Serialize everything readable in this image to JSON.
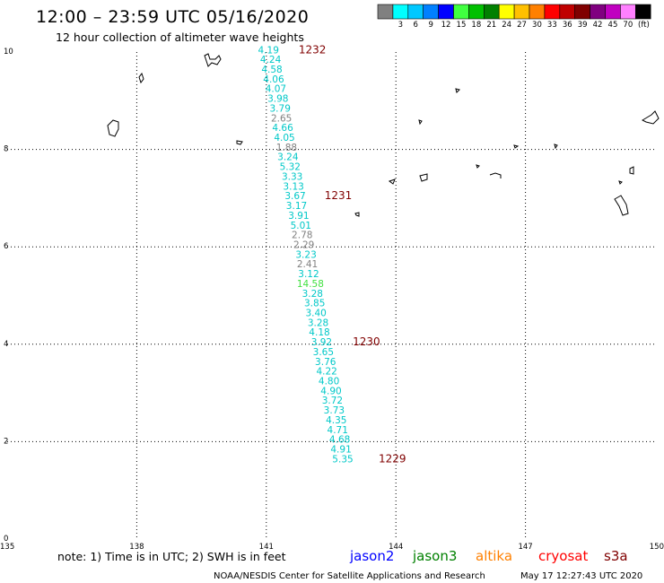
{
  "header": {
    "title": "12:00 – 23:59 UTC 05/16/2020",
    "subtitle": "12 hour collection of altimeter wave heights"
  },
  "colorbar": {
    "unit_label": "(ft)",
    "bins": [
      {
        "color": "#808080",
        "label": ""
      },
      {
        "color": "#00ffff",
        "label": "3"
      },
      {
        "color": "#00c8ff",
        "label": "6"
      },
      {
        "color": "#0080ff",
        "label": "9"
      },
      {
        "color": "#0000ff",
        "label": "12"
      },
      {
        "color": "#40ff40",
        "label": "15"
      },
      {
        "color": "#00c000",
        "label": "18"
      },
      {
        "color": "#008000",
        "label": "21"
      },
      {
        "color": "#ffff00",
        "label": "24"
      },
      {
        "color": "#ffc000",
        "label": "27"
      },
      {
        "color": "#ff8000",
        "label": "30"
      },
      {
        "color": "#ff0000",
        "label": "33"
      },
      {
        "color": "#c00000",
        "label": "36"
      },
      {
        "color": "#800000",
        "label": "39"
      },
      {
        "color": "#800080",
        "label": "42"
      },
      {
        "color": "#c000c0",
        "label": "45"
      },
      {
        "color": "#ff80ff",
        "label": "70"
      },
      {
        "color": "#000000",
        "label": ""
      }
    ]
  },
  "chart_data": {
    "type": "scatter",
    "x_axis": {
      "min": 135,
      "max": 150,
      "ticks": [
        135,
        138,
        141,
        144,
        147,
        150
      ]
    },
    "y_axis": {
      "min": 0,
      "max": 10,
      "ticks": [
        0,
        2,
        4,
        6,
        8,
        10
      ]
    },
    "grid": true,
    "series": [
      {
        "points": [
          {
            "lon": 141.05,
            "lat": 10.05,
            "swh": "4.19",
            "color": "#00c8c8"
          },
          {
            "lon": 141.1,
            "lat": 9.85,
            "swh": "4.24",
            "color": "#00c8c8"
          },
          {
            "lon": 141.13,
            "lat": 9.65,
            "swh": "4.58",
            "color": "#00c8c8"
          },
          {
            "lon": 141.17,
            "lat": 9.45,
            "swh": "4.06",
            "color": "#00c8c8"
          },
          {
            "lon": 141.22,
            "lat": 9.25,
            "swh": "4.07",
            "color": "#00c8c8"
          },
          {
            "lon": 141.27,
            "lat": 9.05,
            "swh": "3.98",
            "color": "#00c8c8"
          },
          {
            "lon": 141.32,
            "lat": 8.85,
            "swh": "3.79",
            "color": "#00c8c8"
          },
          {
            "lon": 141.35,
            "lat": 8.65,
            "swh": "2.65",
            "color": "#808080"
          },
          {
            "lon": 141.38,
            "lat": 8.45,
            "swh": "4.66",
            "color": "#00c8c8"
          },
          {
            "lon": 141.42,
            "lat": 8.25,
            "swh": "4.05",
            "color": "#00c8c8"
          },
          {
            "lon": 141.47,
            "lat": 8.05,
            "swh": "1.88",
            "color": "#808080"
          },
          {
            "lon": 141.5,
            "lat": 7.85,
            "swh": "3.24",
            "color": "#00c8c8"
          },
          {
            "lon": 141.55,
            "lat": 7.65,
            "swh": "5.32",
            "color": "#00c8c8"
          },
          {
            "lon": 141.6,
            "lat": 7.45,
            "swh": "3.33",
            "color": "#00c8c8"
          },
          {
            "lon": 141.63,
            "lat": 7.25,
            "swh": "3.13",
            "color": "#00c8c8"
          },
          {
            "lon": 141.67,
            "lat": 7.05,
            "swh": "3.67",
            "color": "#00c8c8"
          },
          {
            "lon": 141.7,
            "lat": 6.85,
            "swh": "3.17",
            "color": "#00c8c8"
          },
          {
            "lon": 141.75,
            "lat": 6.65,
            "swh": "3.91",
            "color": "#00c8c8"
          },
          {
            "lon": 141.8,
            "lat": 6.45,
            "swh": "5.01",
            "color": "#00c8c8"
          },
          {
            "lon": 141.83,
            "lat": 6.25,
            "swh": "2.78",
            "color": "#808080"
          },
          {
            "lon": 141.87,
            "lat": 6.05,
            "swh": "2.29",
            "color": "#808080"
          },
          {
            "lon": 141.92,
            "lat": 5.85,
            "swh": "3.23",
            "color": "#00c8c8"
          },
          {
            "lon": 141.95,
            "lat": 5.65,
            "swh": "2.41",
            "color": "#808080"
          },
          {
            "lon": 141.98,
            "lat": 5.45,
            "swh": "3.12",
            "color": "#00c8c8"
          },
          {
            "lon": 142.02,
            "lat": 5.25,
            "swh": "14.58",
            "color": "#40e040"
          },
          {
            "lon": 142.07,
            "lat": 5.05,
            "swh": "3.28",
            "color": "#00c8c8"
          },
          {
            "lon": 142.12,
            "lat": 4.85,
            "swh": "3.85",
            "color": "#00c8c8"
          },
          {
            "lon": 142.15,
            "lat": 4.65,
            "swh": "3.40",
            "color": "#00c8c8"
          },
          {
            "lon": 142.2,
            "lat": 4.45,
            "swh": "3.28",
            "color": "#00c8c8"
          },
          {
            "lon": 142.23,
            "lat": 4.25,
            "swh": "4.18",
            "color": "#00c8c8"
          },
          {
            "lon": 142.28,
            "lat": 4.05,
            "swh": "3.92",
            "color": "#00c8c8"
          },
          {
            "lon": 142.32,
            "lat": 3.85,
            "swh": "3.65",
            "color": "#00c8c8"
          },
          {
            "lon": 142.37,
            "lat": 3.65,
            "swh": "3.76",
            "color": "#00c8c8"
          },
          {
            "lon": 142.4,
            "lat": 3.45,
            "swh": "4.22",
            "color": "#00c8c8"
          },
          {
            "lon": 142.45,
            "lat": 3.25,
            "swh": "4.80",
            "color": "#00c8c8"
          },
          {
            "lon": 142.5,
            "lat": 3.05,
            "swh": "4.90",
            "color": "#00c8c8"
          },
          {
            "lon": 142.53,
            "lat": 2.85,
            "swh": "3.72",
            "color": "#00c8c8"
          },
          {
            "lon": 142.57,
            "lat": 2.65,
            "swh": "3.73",
            "color": "#00c8c8"
          },
          {
            "lon": 142.62,
            "lat": 2.45,
            "swh": "4.35",
            "color": "#00c8c8"
          },
          {
            "lon": 142.65,
            "lat": 2.25,
            "swh": "4.71",
            "color": "#00c8c8"
          },
          {
            "lon": 142.7,
            "lat": 2.05,
            "swh": "4.68",
            "color": "#00c8c8"
          },
          {
            "lon": 142.73,
            "lat": 1.85,
            "swh": "4.91",
            "color": "#00c8c8"
          },
          {
            "lon": 142.77,
            "lat": 1.65,
            "swh": "5.35",
            "color": "#00c8c8"
          }
        ]
      }
    ],
    "annotations": [
      {
        "text": "1232",
        "lon": 141.75,
        "lat": 10.05
      },
      {
        "text": "1231",
        "lon": 142.35,
        "lat": 7.05
      },
      {
        "text": "1230",
        "lon": 143.0,
        "lat": 4.05
      },
      {
        "text": "1229",
        "lon": 143.6,
        "lat": 1.65
      }
    ]
  },
  "footer": {
    "note": "note:  1) Time is in UTC;  2) SWH is in feet",
    "satellites": [
      {
        "name": "jason2",
        "color": "#0000ff"
      },
      {
        "name": "jason3",
        "color": "#008000"
      },
      {
        "name": "altika",
        "color": "#ff8000"
      },
      {
        "name": "cryosat",
        "color": "#ff0000"
      },
      {
        "name": "s3a",
        "color": "#800000"
      }
    ],
    "credit": "NOAA/NESDIS Center for Satellite Applications and Research",
    "timestamp": "May 17 12:27:43 UTC 2020"
  }
}
